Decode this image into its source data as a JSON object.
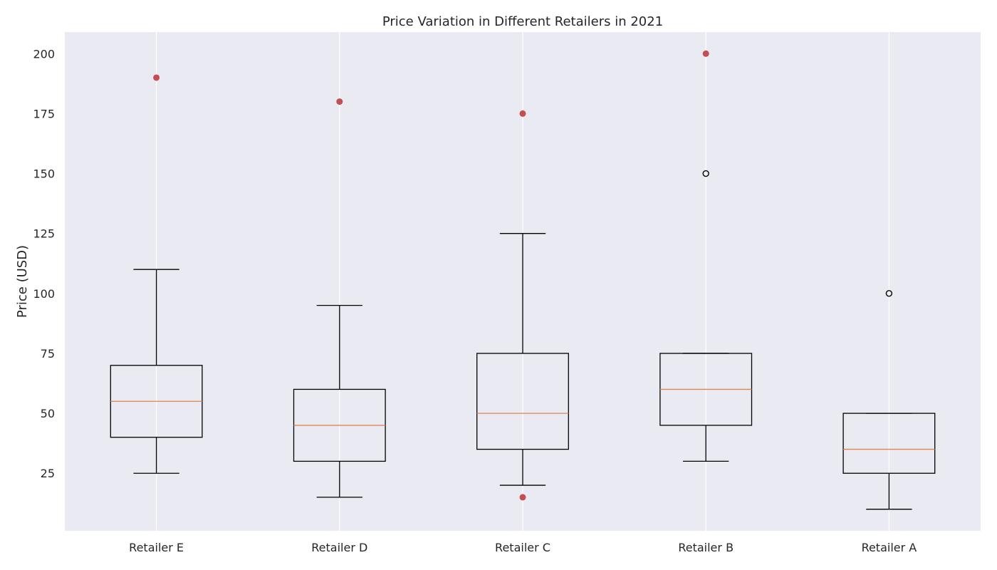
{
  "chart_data": {
    "type": "box",
    "title": "Price Variation in Different Retailers in 2021",
    "xlabel": "",
    "ylabel": "Price (USD)",
    "ylim": [
      1,
      209
    ],
    "yticks": [
      25,
      50,
      75,
      100,
      125,
      150,
      175,
      200
    ],
    "grid": "vertical",
    "categories": [
      "Retailer E",
      "Retailer D",
      "Retailer C",
      "Retailer B",
      "Retailer A"
    ],
    "boxes": [
      {
        "category": "Retailer E",
        "whisker_low": 25,
        "q1": 40,
        "median": 55,
        "q3": 70,
        "whisker_high": 110,
        "outliers": [],
        "highlighted_points": [
          190
        ]
      },
      {
        "category": "Retailer D",
        "whisker_low": 15,
        "q1": 30,
        "median": 45,
        "q3": 60,
        "whisker_high": 95,
        "outliers": [],
        "highlighted_points": [
          180
        ]
      },
      {
        "category": "Retailer C",
        "whisker_low": 20,
        "q1": 35,
        "median": 50,
        "q3": 75,
        "whisker_high": 125,
        "outliers": [],
        "highlighted_points": [
          175,
          15
        ]
      },
      {
        "category": "Retailer B",
        "whisker_low": 30,
        "q1": 45,
        "median": 60,
        "q3": 75,
        "whisker_high": 75,
        "outliers": [
          150
        ],
        "highlighted_points": [
          200
        ]
      },
      {
        "category": "Retailer A",
        "whisker_low": 10,
        "q1": 25,
        "median": 35,
        "q3": 50,
        "whisker_high": 50,
        "outliers": [
          100
        ],
        "highlighted_points": []
      }
    ],
    "colors": {
      "plot_background": "#eaeaf2",
      "grid": "#ffffff",
      "box_stroke": "#000000",
      "median": "#dd8452",
      "highlight_point": "#c44e52",
      "outlier_edge": "#000000"
    }
  }
}
